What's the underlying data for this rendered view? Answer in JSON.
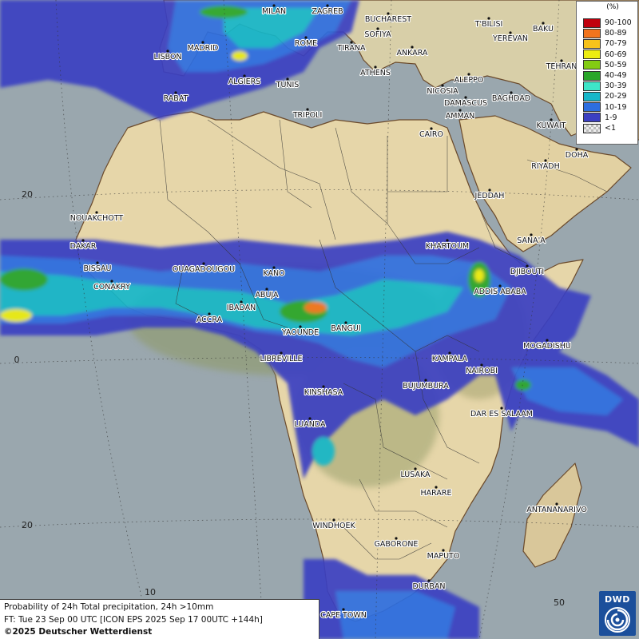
{
  "map": {
    "cities": [
      {
        "name": "MILAN"
      },
      {
        "name": "ZAGREB"
      },
      {
        "name": "BUCHAREST"
      },
      {
        "name": "SOFIYA"
      },
      {
        "name": "ROME"
      },
      {
        "name": "TIRANA"
      },
      {
        "name": "ANKARA"
      },
      {
        "name": "T'BILISI"
      },
      {
        "name": "YEREVAN"
      },
      {
        "name": "BAKU"
      },
      {
        "name": "TEHRAN"
      },
      {
        "name": "MADRID"
      },
      {
        "name": "LISBON"
      },
      {
        "name": "ATHENS"
      },
      {
        "name": "ALGIERS"
      },
      {
        "name": "TUNIS"
      },
      {
        "name": "ALEPPO"
      },
      {
        "name": "NICOSIA"
      },
      {
        "name": "BAGHDAD"
      },
      {
        "name": "RABAT"
      },
      {
        "name": "DAMASCUS"
      },
      {
        "name": "AMMAN"
      },
      {
        "name": "TRIPOLI"
      },
      {
        "name": "CAIRO"
      },
      {
        "name": "KUWAIT"
      },
      {
        "name": "DOHA"
      },
      {
        "name": "RIYADH"
      },
      {
        "name": "JEDDAH"
      },
      {
        "name": "NOUAKCHOTT"
      },
      {
        "name": "SANA'A"
      },
      {
        "name": "DAKAR"
      },
      {
        "name": "KHARTOUM"
      },
      {
        "name": "BISSAU"
      },
      {
        "name": "OUAGADOUGOU"
      },
      {
        "name": "KANO"
      },
      {
        "name": "DJIBOUTI"
      },
      {
        "name": "CONAKRY"
      },
      {
        "name": "ABUJA"
      },
      {
        "name": "ADDIS ABABA"
      },
      {
        "name": "IBADAN"
      },
      {
        "name": "ACCRA"
      },
      {
        "name": "BANGUI"
      },
      {
        "name": "YAOUNDE"
      },
      {
        "name": "MOGADISHU"
      },
      {
        "name": "LIBREVILLE"
      },
      {
        "name": "KAMPALA"
      },
      {
        "name": "NAIROBI"
      },
      {
        "name": "KINSHASA"
      },
      {
        "name": "BUJUMBURA"
      },
      {
        "name": "DAR ES SALAAM"
      },
      {
        "name": "LUANDA"
      },
      {
        "name": "LUSAKA"
      },
      {
        "name": "HARARE"
      },
      {
        "name": "ANTANANARIVO"
      },
      {
        "name": "WINDHOEK"
      },
      {
        "name": "GABORONE"
      },
      {
        "name": "MAPUTO"
      },
      {
        "name": "DURBAN"
      },
      {
        "name": "CAPE TOWN"
      }
    ],
    "grid_labels": [
      {
        "text": "20"
      },
      {
        "text": "0"
      },
      {
        "text": "20"
      },
      {
        "text": "10"
      },
      {
        "text": "50"
      }
    ]
  },
  "legend": {
    "title": "(%)",
    "items": [
      {
        "label": "90-100",
        "color": "#c0000d"
      },
      {
        "label": "80-89",
        "color": "#f2741d"
      },
      {
        "label": "70-79",
        "color": "#f7c21b"
      },
      {
        "label": "60-69",
        "color": "#eded10"
      },
      {
        "label": "50-59",
        "color": "#83cc12"
      },
      {
        "label": "40-49",
        "color": "#2aa62a"
      },
      {
        "label": "30-39",
        "color": "#3ee5c8"
      },
      {
        "label": "20-29",
        "color": "#17b7c9"
      },
      {
        "label": "10-19",
        "color": "#2d6ee0"
      },
      {
        "label": "1-9",
        "color": "#3b3fc2"
      },
      {
        "label": "<1",
        "color": "checker"
      }
    ]
  },
  "caption": {
    "line1": "Probability of 24h Total precipitation, 24h >10mm",
    "line2": "FT: Tue 23 Sep 00 UTC [ICON EPS 2025 Sep 17 00UTC +144h]",
    "line3": "©2025 Deutscher Wetterdienst"
  },
  "logo": {
    "text": "DWD"
  },
  "colors": {
    "sea": "#9aa7ae",
    "land_desert": "#e9d9ae",
    "land_green": "#b9b88d",
    "prob_low": "#3b3fc2",
    "prob_10": "#2d6ee0",
    "prob_20": "#17b7c9",
    "prob_30": "#3ee5c8",
    "prob_40": "#2aa62a"
  }
}
